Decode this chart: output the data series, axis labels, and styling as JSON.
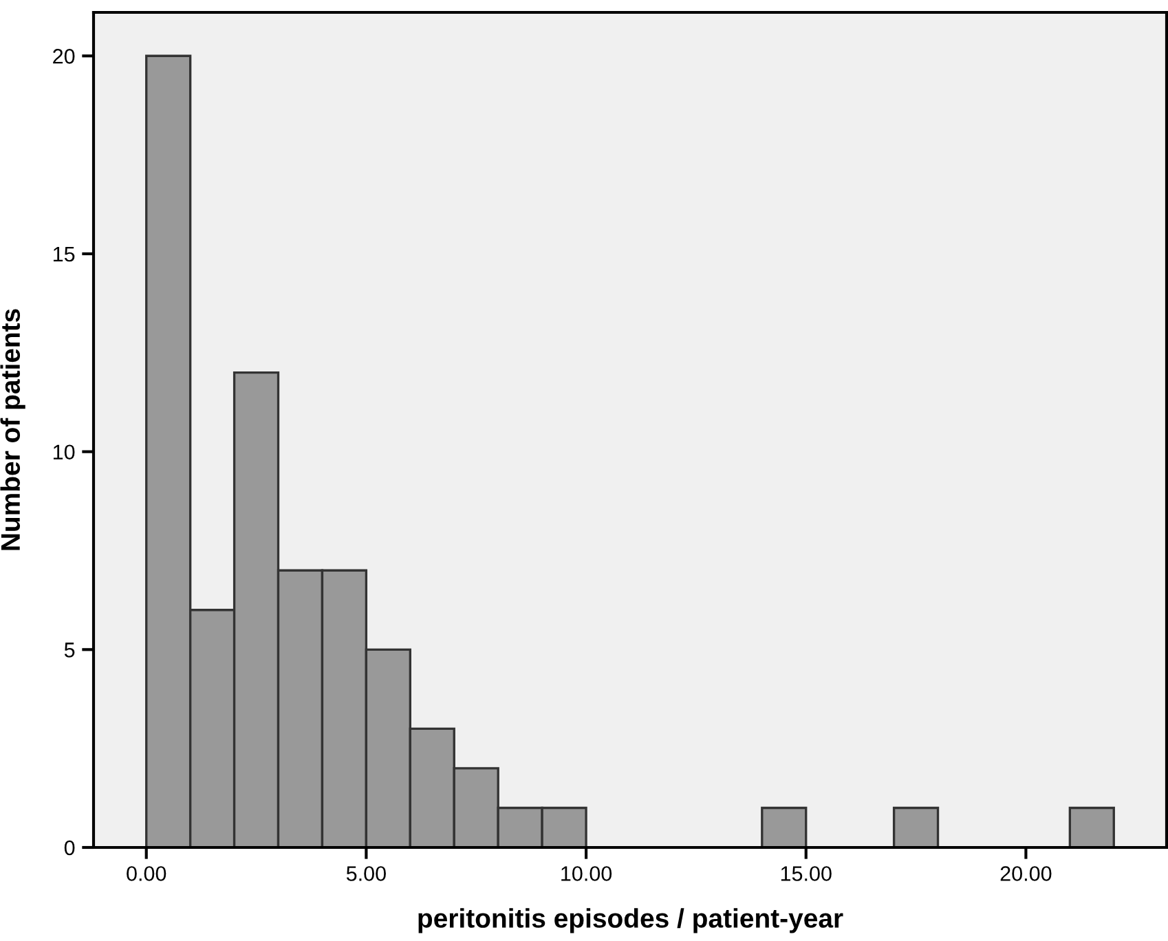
{
  "chart_data": {
    "type": "histogram",
    "xlabel": "peritonitis episodes / patient-year",
    "ylabel": "Number of patients",
    "bins": [
      0,
      1,
      2,
      3,
      4,
      5,
      6,
      7,
      8,
      9,
      10,
      11,
      12,
      13,
      14,
      15,
      16,
      17,
      18,
      19,
      20,
      21,
      22
    ],
    "values": [
      20,
      6,
      12,
      7,
      7,
      5,
      3,
      2,
      1,
      1,
      0,
      0,
      0,
      0,
      1,
      0,
      0,
      1,
      0,
      0,
      0,
      1
    ],
    "color": "#999999",
    "xlim": [
      -1.2,
      23.2
    ],
    "ylim": [
      0,
      21.1
    ],
    "xticks": [
      {
        "value": 0,
        "label": "0.00"
      },
      {
        "value": 5,
        "label": "5.00"
      },
      {
        "value": 10,
        "label": "10.00"
      },
      {
        "value": 15,
        "label": "15.00"
      },
      {
        "value": 20,
        "label": "20.00"
      }
    ],
    "yticks": [
      0,
      5,
      10,
      15,
      20
    ],
    "grid": false,
    "legend": false
  }
}
